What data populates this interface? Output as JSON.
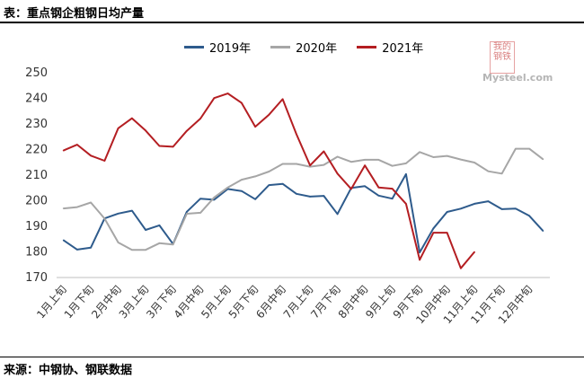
{
  "page": {
    "title": "表：重点钢企粗钢日均产量",
    "source": "来源：中钢协、钢联数据"
  },
  "watermark": {
    "logo_text": "我的钢铁",
    "site_text": "Mysteel.com"
  },
  "legend": [
    {
      "label": "2019年",
      "color": "#2e5b8c"
    },
    {
      "label": "2020年",
      "color": "#a6a6a6"
    },
    {
      "label": "2021年",
      "color": "#b41e22"
    }
  ],
  "chart_data": {
    "type": "line",
    "title": "重点钢企粗钢日均产量",
    "x_tick_labels": [
      "1月上旬",
      "1月下旬",
      "2月中旬",
      "3月上旬",
      "3月下旬",
      "4月中旬",
      "5月上旬",
      "5月下旬",
      "6月中旬",
      "7月上旬",
      "7月下旬",
      "8月中旬",
      "9月上旬",
      "9月下旬",
      "10月中旬",
      "11月上旬",
      "11月下旬",
      "12月中旬"
    ],
    "ylim": [
      170,
      250
    ],
    "yticks": [
      170,
      180,
      190,
      200,
      210,
      220,
      230,
      240,
      250
    ],
    "grid": false,
    "legend_position": "top",
    "series": [
      {
        "name": "2019年",
        "color": "#2e5b8c",
        "values": [
          184.6,
          180.9,
          181.7,
          193.1,
          195.0,
          196.1,
          188.6,
          190.4,
          183.1,
          195.7,
          200.8,
          200.4,
          204.6,
          203.8,
          200.6,
          206.1,
          206.6,
          202.7,
          201.6,
          201.9,
          194.8,
          205.0,
          205.7,
          202.0,
          200.8,
          210.4,
          179.8,
          189.2,
          195.6,
          196.9,
          198.8,
          199.8,
          196.7,
          196.9,
          194.1,
          188.2
        ]
      },
      {
        "name": "2020年",
        "color": "#a6a6a6",
        "values": [
          197.0,
          197.5,
          199.3,
          193.0,
          183.7,
          180.8,
          180.8,
          183.4,
          182.9,
          194.9,
          195.3,
          201.3,
          205.2,
          208.2,
          209.5,
          211.4,
          214.4,
          214.4,
          213.3,
          214.0,
          217.2,
          215.2,
          216.0,
          216.0,
          213.6,
          214.6,
          219.0,
          217.0,
          217.5,
          216.1,
          214.9,
          211.5,
          210.6,
          220.3,
          220.3,
          216.2
        ]
      },
      {
        "name": "2021年",
        "color": "#b41e22",
        "values": [
          219.6,
          221.9,
          217.6,
          215.6,
          228.3,
          232.2,
          227.4,
          221.4,
          221.1,
          227.3,
          232.1,
          240.1,
          241.9,
          238.2,
          228.9,
          233.6,
          239.7,
          226.0,
          213.8,
          219.3,
          210.6,
          204.6,
          213.8,
          205.2,
          204.7,
          198.8,
          176.9,
          187.5,
          187.5,
          173.6,
          180.0
        ]
      }
    ]
  }
}
